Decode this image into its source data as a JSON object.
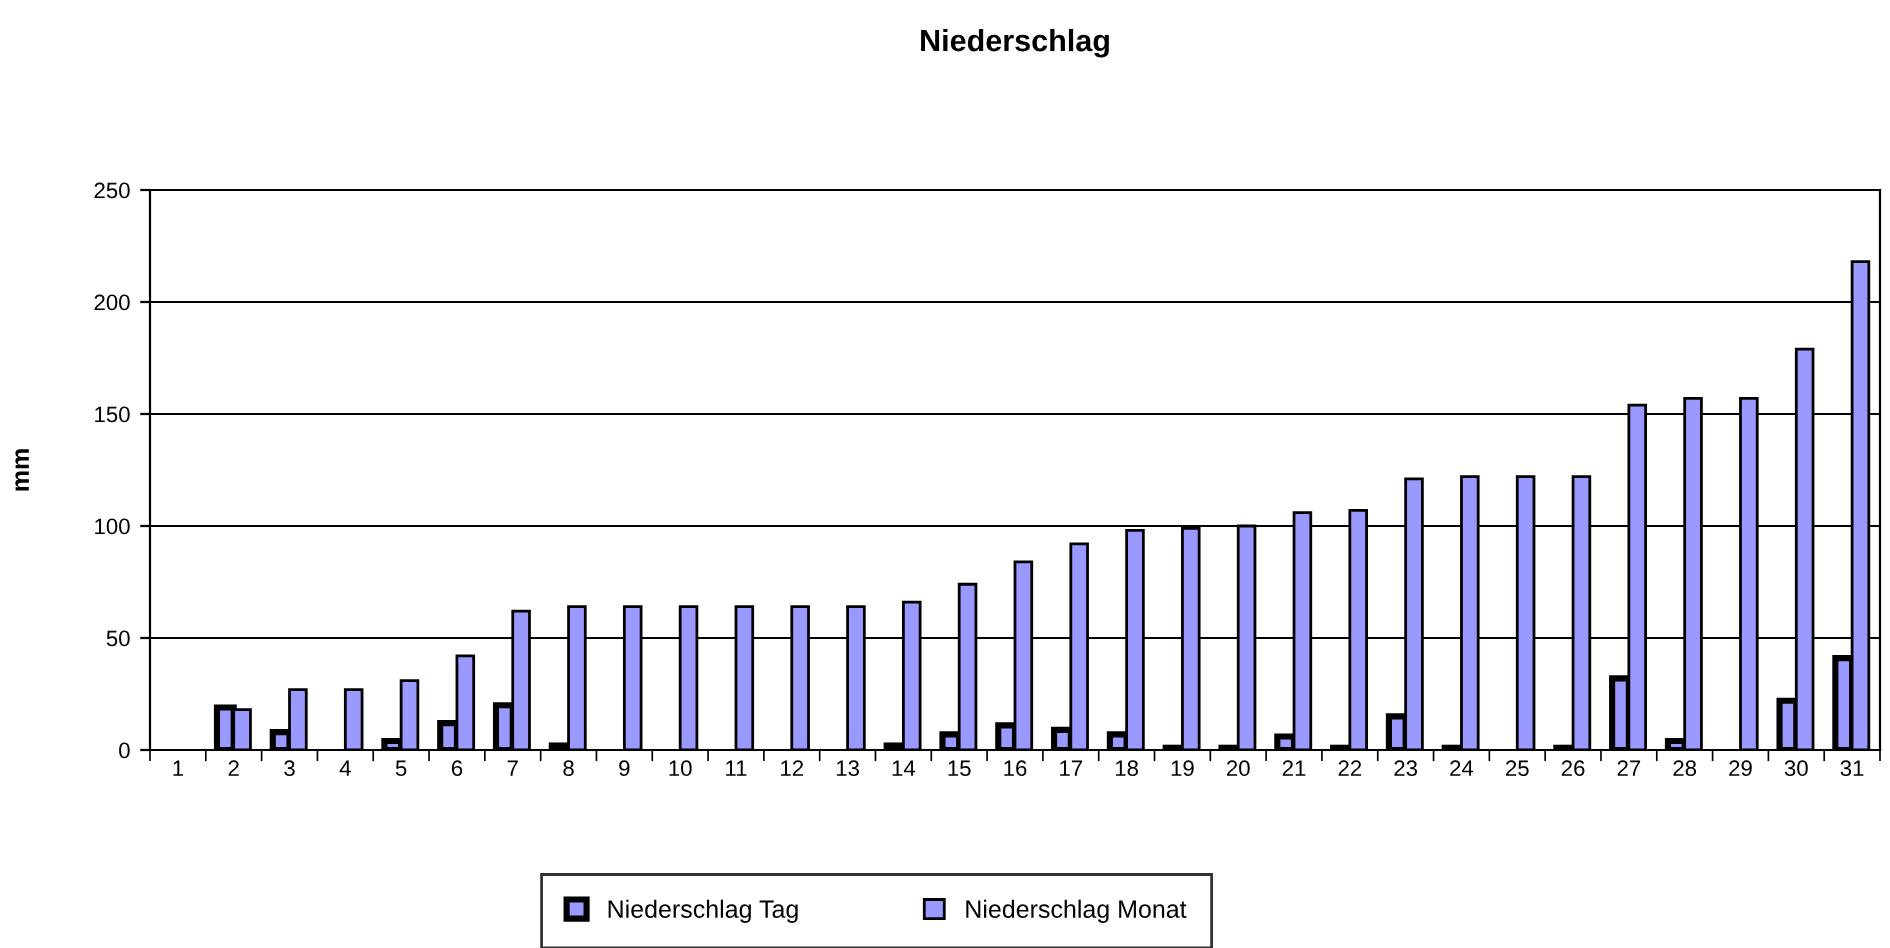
{
  "chart_data": {
    "type": "bar",
    "title": "Niederschlag",
    "ylabel": "mm",
    "categories": [
      "1",
      "2",
      "3",
      "4",
      "5",
      "6",
      "7",
      "8",
      "9",
      "10",
      "11",
      "12",
      "13",
      "14",
      "15",
      "16",
      "17",
      "18",
      "19",
      "20",
      "21",
      "22",
      "23",
      "24",
      "25",
      "26",
      "27",
      "28",
      "29",
      "30",
      "31"
    ],
    "series": [
      {
        "name": "Niederschlag Tag",
        "color": "#000000",
        "values": [
          0,
          19,
          8,
          0,
          4,
          12,
          20,
          2,
          0,
          0,
          0,
          0,
          0,
          2,
          7,
          11,
          9,
          7,
          1,
          1,
          6,
          1,
          15,
          1,
          0,
          1,
          32,
          4,
          0,
          22,
          41
        ]
      },
      {
        "name": "Niederschlag Monat",
        "color": "#9999ff",
        "values": [
          0,
          18,
          27,
          27,
          31,
          42,
          62,
          64,
          64,
          64,
          64,
          64,
          64,
          66,
          74,
          84,
          92,
          98,
          99,
          100,
          106,
          107,
          121,
          122,
          122,
          122,
          154,
          157,
          157,
          179,
          218
        ]
      }
    ],
    "ylim": [
      0,
      250
    ],
    "yticks": [
      0,
      50,
      100,
      150,
      200,
      250
    ],
    "grid": "y",
    "legend": "bottom"
  }
}
